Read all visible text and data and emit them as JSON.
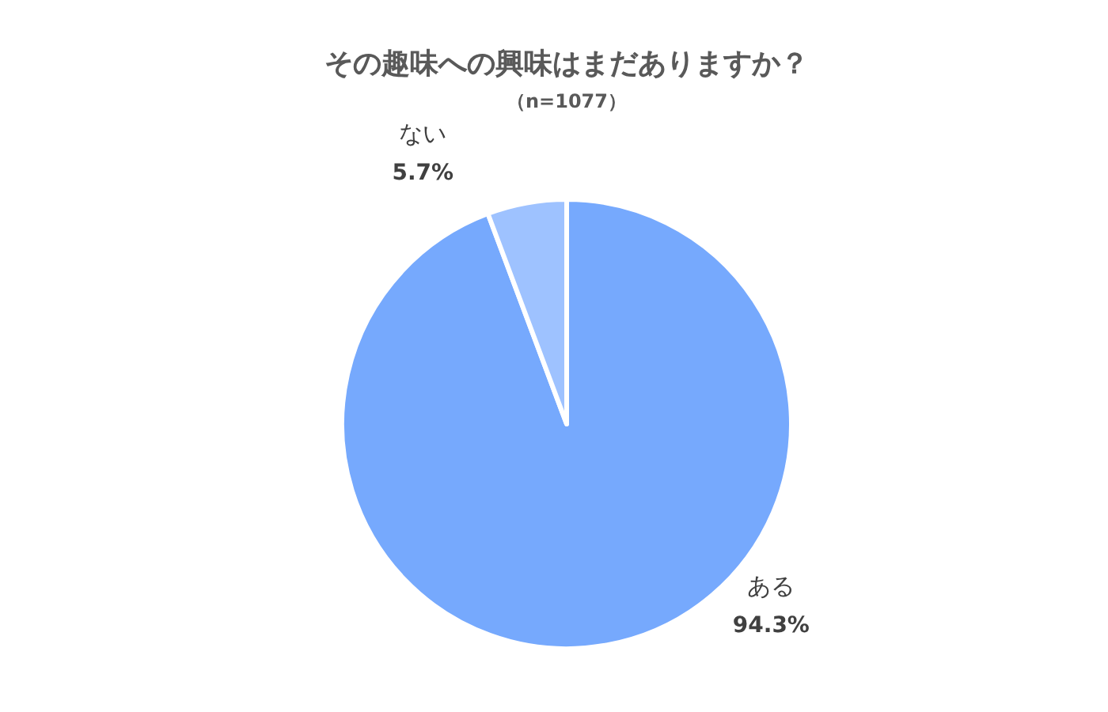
{
  "chart_data": {
    "type": "pie",
    "title": "その趣味への興味はまだありますか？",
    "subtitle": "（n=1077）",
    "categories": [
      "ある",
      "ない"
    ],
    "values": [
      94.3,
      5.7
    ],
    "colors": [
      "#76a9fd",
      "#9ec2ff"
    ],
    "value_labels": [
      "94.3%",
      "5.7%"
    ]
  }
}
